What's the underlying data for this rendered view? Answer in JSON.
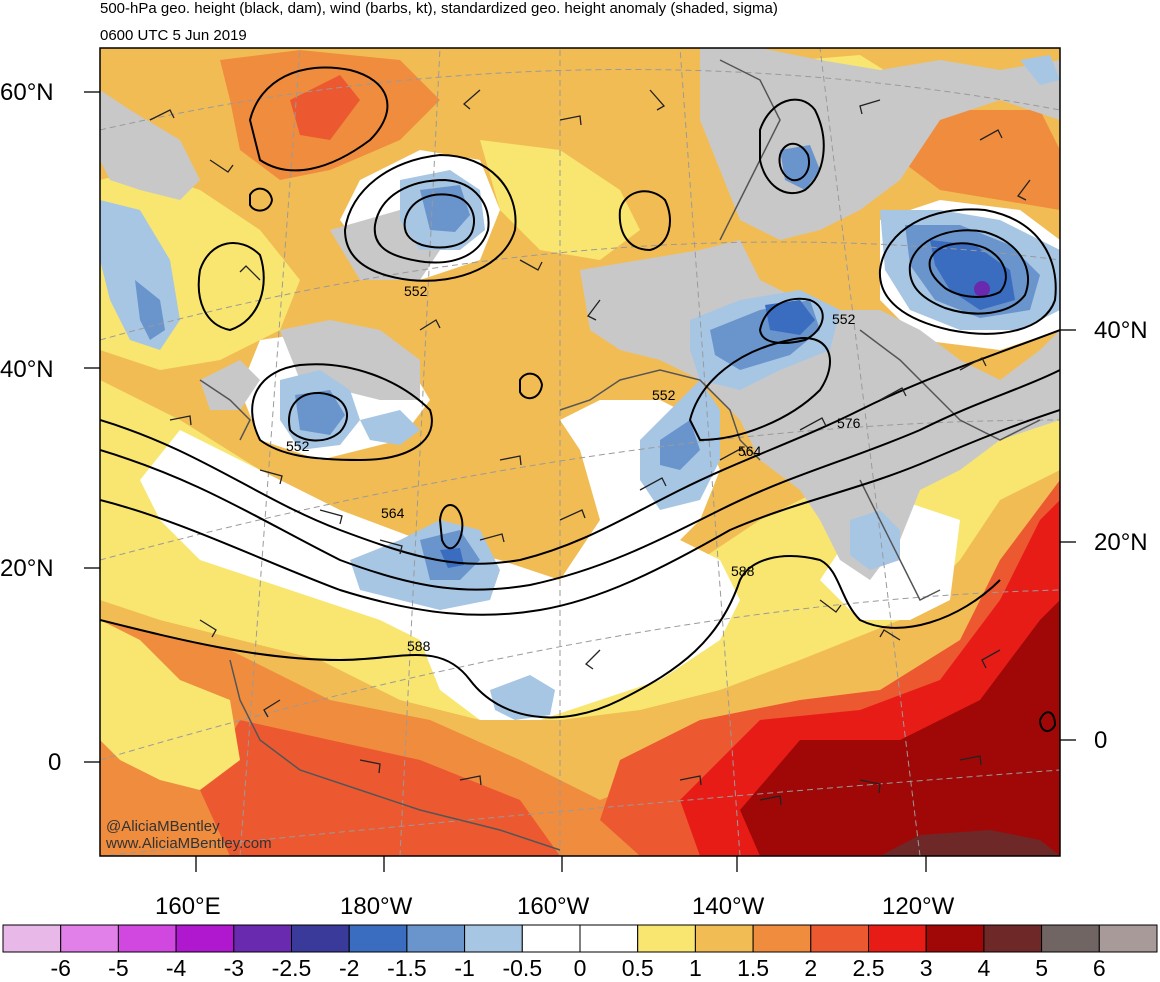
{
  "titles": {
    "line1": "500-hPa geo. height (black, dam), wind (barbs, kt), standardized geo. height anomaly (shaded, sigma)",
    "line2": "0600 UTC 5 Jun 2019"
  },
  "lat_labels_left": [
    "60°N",
    "40°N",
    "20°N",
    "0"
  ],
  "lat_labels_right": [
    "40°N",
    "20°N",
    "0"
  ],
  "lon_labels": [
    "160°E",
    "180°W",
    "160°W",
    "140°W",
    "120°W"
  ],
  "contour_labels": [
    "552",
    "552",
    "552",
    "552",
    "564",
    "564",
    "576",
    "588",
    "588"
  ],
  "colorbar": {
    "labels": [
      "-6",
      "-5",
      "-4",
      "-3",
      "-2.5",
      "-2",
      "-1.5",
      "-1",
      "-0.5",
      "0",
      "0.5",
      "1",
      "1.5",
      "2",
      "2.5",
      "3",
      "4",
      "5",
      "6"
    ],
    "colors": [
      "#e8b8e8",
      "#e080e8",
      "#d048e0",
      "#b018d0",
      "#6a2ab0",
      "#3a3a9a",
      "#3a6cc0",
      "#6a94cc",
      "#a6c6e4",
      "#ffffff",
      "#ffffff",
      "#f8e670",
      "#f2bc54",
      "#ef8c3e",
      "#ec5830",
      "#e81c16",
      "#a00808",
      "#6e2828",
      "#716564",
      "#a89a98"
    ]
  },
  "credit": {
    "line1": "@AliciaMBentley",
    "line2": "www.AliciaMBentley.com"
  },
  "colors": {
    "gray_land": "#c8c8c8",
    "contour": "#000000",
    "coast": "#555555"
  }
}
